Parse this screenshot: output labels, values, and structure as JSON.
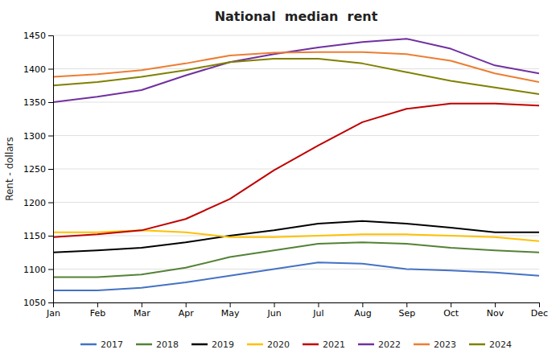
{
  "chart_data": {
    "type": "line",
    "title": "National  median  rent",
    "ylabel": "Rent - dollars",
    "categories": [
      "Jan",
      "Feb",
      "Mar",
      "Apr",
      "May",
      "Jun",
      "Jul",
      "Aug",
      "Sep",
      "Oct",
      "Nov",
      "Dec"
    ],
    "series": [
      {
        "name": "2017",
        "color": "#4472c4",
        "values": [
          1068,
          1068,
          1072,
          1080,
          1090,
          1100,
          1110,
          1108,
          1100,
          1098,
          1095,
          1090
        ]
      },
      {
        "name": "2018",
        "color": "#548235",
        "values": [
          1088,
          1088,
          1092,
          1102,
          1118,
          1128,
          1138,
          1140,
          1138,
          1132,
          1128,
          1125
        ]
      },
      {
        "name": "2019",
        "color": "#000000",
        "values": [
          1125,
          1128,
          1132,
          1140,
          1150,
          1158,
          1168,
          1172,
          1168,
          1162,
          1155,
          1155
        ]
      },
      {
        "name": "2020",
        "color": "#ffc000",
        "values": [
          1155,
          1155,
          1158,
          1155,
          1148,
          1148,
          1150,
          1152,
          1152,
          1150,
          1148,
          1142
        ]
      },
      {
        "name": "2021",
        "color": "#c00000",
        "values": [
          1148,
          1152,
          1158,
          1175,
          1205,
          1248,
          1285,
          1320,
          1340,
          1348,
          1348,
          1345
        ]
      },
      {
        "name": "2022",
        "color": "#7030a0",
        "values": [
          1350,
          1358,
          1368,
          1390,
          1410,
          1422,
          1432,
          1440,
          1445,
          1430,
          1405,
          1393
        ]
      },
      {
        "name": "2023",
        "color": "#ed7d31",
        "values": [
          1388,
          1392,
          1398,
          1408,
          1420,
          1424,
          1425,
          1425,
          1422,
          1412,
          1393,
          1380
        ]
      },
      {
        "name": "2024",
        "color": "#808000",
        "values": [
          1375,
          1380,
          1388,
          1398,
          1410,
          1415,
          1415,
          1408,
          1395,
          1382,
          1372,
          1362
        ]
      }
    ],
    "ylim": [
      1050,
      1450
    ],
    "yticks": [
      1050,
      1100,
      1150,
      1200,
      1250,
      1300,
      1350,
      1400,
      1450
    ],
    "grid": true,
    "legend": "bottom"
  }
}
